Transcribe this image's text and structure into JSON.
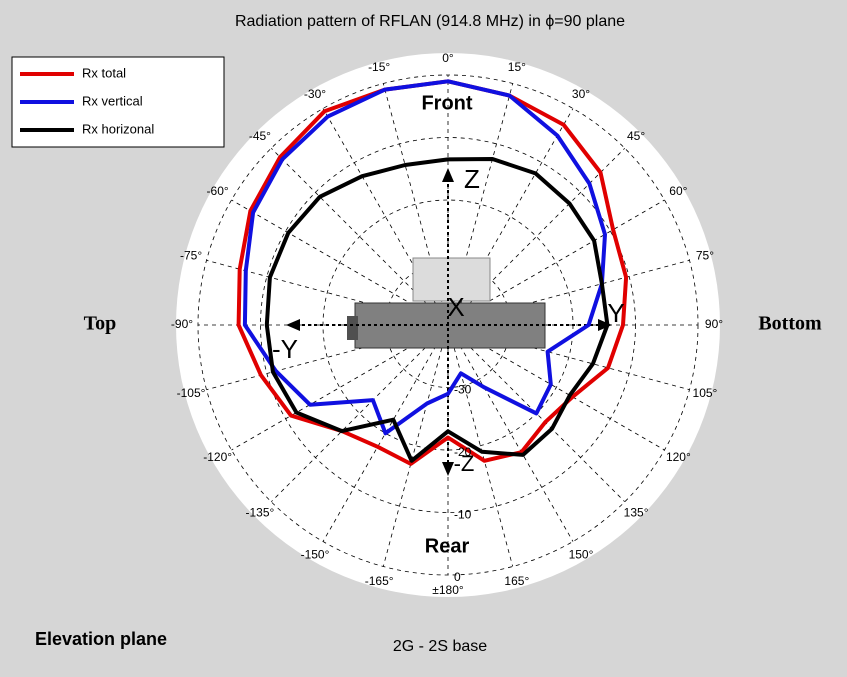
{
  "chart_data": {
    "type": "polar",
    "title": "Radiation pattern of RFLAN (914.8 MHz) in ϕ=90 plane",
    "angles": [
      -165,
      -150,
      -135,
      -120,
      -105,
      -90,
      -75,
      -60,
      -45,
      -30,
      -15,
      0,
      15,
      30,
      45,
      60,
      75,
      90,
      105,
      120,
      135,
      150,
      165,
      180
    ],
    "series": [
      {
        "name": "Rx total",
        "color": "#e00000",
        "values": [
          -17,
          -17.5,
          -16,
          -11,
          -9,
          -6.5,
          -5.5,
          -3.5,
          -2,
          -0.5,
          -1,
          -1,
          -2,
          -3,
          -5.5,
          -9.5,
          -10.5,
          -12,
          -13.5,
          -17,
          -18,
          -16.5,
          -17.5,
          -22
        ]
      },
      {
        "name": "Rx vertical",
        "color": "#1010e0",
        "values": [
          -27,
          -20,
          -23,
          -14.5,
          -11.5,
          -7.5,
          -6.5,
          -4,
          -2.5,
          -1.5,
          -1,
          -1,
          -2,
          -5,
          -8,
          -11,
          -14.5,
          -17.5,
          -23.5,
          -21,
          -20,
          -28.5,
          -32,
          -29
        ]
      },
      {
        "name": "Rx horizonal",
        "color": "#000000",
        "values": [
          -17.5,
          -22.5,
          -16,
          -12,
          -11,
          -11,
          -10.5,
          -10.5,
          -11,
          -12.5,
          -13.5,
          -13.5,
          -12.5,
          -12,
          -12.5,
          -13,
          -14.5,
          -14.5,
          -16,
          -17.5,
          -16.5,
          -16,
          -19,
          -23
        ]
      }
    ],
    "theta_ticks": [
      {
        "value": -165,
        "label": "-165°"
      },
      {
        "value": -150,
        "label": "-150°"
      },
      {
        "value": -135,
        "label": "-135°"
      },
      {
        "value": -120,
        "label": "-120°"
      },
      {
        "value": -105,
        "label": "-105°"
      },
      {
        "value": -90,
        "label": "-90°"
      },
      {
        "value": -75,
        "label": "-75°"
      },
      {
        "value": -60,
        "label": "-60°"
      },
      {
        "value": -45,
        "label": "-45°"
      },
      {
        "value": -30,
        "label": "-30°"
      },
      {
        "value": -15,
        "label": "-15°"
      },
      {
        "value": 0,
        "label": "0°"
      },
      {
        "value": 15,
        "label": "15°"
      },
      {
        "value": 30,
        "label": "30°"
      },
      {
        "value": 45,
        "label": "45°"
      },
      {
        "value": 60,
        "label": "60°"
      },
      {
        "value": 75,
        "label": "75°"
      },
      {
        "value": 90,
        "label": "90°"
      },
      {
        "value": 105,
        "label": "105°"
      },
      {
        "value": 120,
        "label": "120°"
      },
      {
        "value": 135,
        "label": "135°"
      },
      {
        "value": 150,
        "label": "150°"
      },
      {
        "value": 165,
        "label": "165°"
      },
      {
        "value": 180,
        "label": "±180°"
      }
    ],
    "rlim": [
      -40,
      0
    ],
    "rticks": [
      -30,
      -20,
      -10,
      0
    ],
    "grid": true,
    "legend": "upper left",
    "annotations": {
      "front": "Front",
      "rear": "Rear",
      "top": "Top",
      "bottom": "Bottom",
      "z": "Z",
      "minus_z": "-Z",
      "y": "Y",
      "minus_y": "-Y",
      "x": "X"
    },
    "footer_left": "Elevation plane",
    "footer_center": "2G - 2S base"
  }
}
